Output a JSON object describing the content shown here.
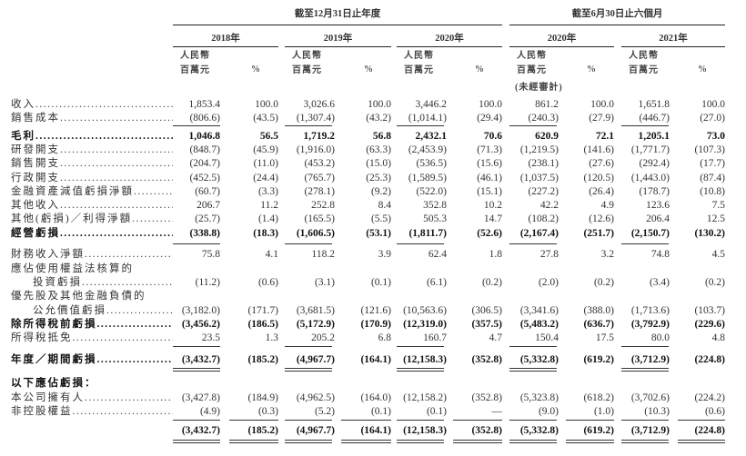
{
  "header": {
    "period_year": "截至12月31日止年度",
    "period_half": "截至6月30日止六個月",
    "columns": [
      "2018年",
      "2019年",
      "2020年",
      "2020年",
      "2021年"
    ],
    "unit_line1": "人民幣",
    "unit_line2": "百萬元",
    "pct": "%",
    "unaudited": "(未經審計)"
  },
  "rows": [
    {
      "label": "收入",
      "values": [
        "1,853.4",
        "100.0",
        "3,026.6",
        "100.0",
        "3,446.2",
        "100.0",
        "861.2",
        "100.0",
        "1,651.8",
        "100.0"
      ]
    },
    {
      "label": "銷售成本",
      "values": [
        "(806.6)",
        "(43.5)",
        "(1,307.4)",
        "(43.2)",
        "(1,014.1)",
        "(29.4)",
        "(240.3)",
        "(27.9)",
        "(446.7)",
        "(27.0)"
      ]
    },
    {
      "label": "毛利",
      "bold": true,
      "values": [
        "1,046.8",
        "56.5",
        "1,719.2",
        "56.8",
        "2,432.1",
        "70.6",
        "620.9",
        "72.1",
        "1,205.1",
        "73.0"
      ]
    },
    {
      "label": "研發開支",
      "values": [
        "(848.7)",
        "(45.9)",
        "(1,916.0)",
        "(63.3)",
        "(2,453.9)",
        "(71.3)",
        "(1,219.5)",
        "(141.6)",
        "(1,771.7)",
        "(107.3)"
      ]
    },
    {
      "label": "銷售開支",
      "values": [
        "(204.7)",
        "(11.0)",
        "(453.2)",
        "(15.0)",
        "(536.5)",
        "(15.6)",
        "(238.1)",
        "(27.6)",
        "(292.4)",
        "(17.7)"
      ]
    },
    {
      "label": "行政開支",
      "values": [
        "(452.5)",
        "(24.4)",
        "(765.7)",
        "(25.3)",
        "(1,589.5)",
        "(46.1)",
        "(1,037.5)",
        "(120.5)",
        "(1,443.0)",
        "(87.4)"
      ]
    },
    {
      "label": "金融資產減值虧損淨額",
      "values": [
        "(60.7)",
        "(3.3)",
        "(278.1)",
        "(9.2)",
        "(522.0)",
        "(15.1)",
        "(227.2)",
        "(26.4)",
        "(178.7)",
        "(10.8)"
      ]
    },
    {
      "label": "其他收入",
      "values": [
        "206.7",
        "11.2",
        "252.8",
        "8.4",
        "352.8",
        "10.2",
        "42.2",
        "4.9",
        "123.6",
        "7.5"
      ]
    },
    {
      "label": "其他(虧損)／利得淨額",
      "values": [
        "(25.7)",
        "(1.4)",
        "(165.5)",
        "(5.5)",
        "505.3",
        "14.7",
        "(108.2)",
        "(12.6)",
        "206.4",
        "12.5"
      ]
    },
    {
      "label": "經營虧損",
      "bold": true,
      "values": [
        "(338.8)",
        "(18.3)",
        "(1,606.5)",
        "(53.1)",
        "(1,811.7)",
        "(52.6)",
        "(2,167.4)",
        "(251.7)",
        "(2,150.7)",
        "(130.2)"
      ]
    },
    {
      "label": "財務收入淨額",
      "values": [
        "75.8",
        "4.1",
        "118.2",
        "3.9",
        "62.4",
        "1.8",
        "27.8",
        "3.2",
        "74.8",
        "4.5"
      ]
    },
    {
      "label": "應佔使用權益法核算的",
      "nodots": true,
      "values": []
    },
    {
      "label": "投資虧損",
      "indent": true,
      "values": [
        "(11.2)",
        "(0.6)",
        "(3.1)",
        "(0.1)",
        "(6.1)",
        "(0.2)",
        "(2.0)",
        "(0.2)",
        "(3.4)",
        "(0.2)"
      ]
    },
    {
      "label": "優先股及其他金融負債的",
      "nodots": true,
      "values": []
    },
    {
      "label": "公允價值虧損",
      "indent": true,
      "values": [
        "(3,182.0)",
        "(171.7)",
        "(3,681.5)",
        "(121.6)",
        "(10,563.6)",
        "(306.5)",
        "(3,341.6)",
        "(388.0)",
        "(1,713.6)",
        "(103.7)"
      ]
    },
    {
      "label": "除所得稅前虧損",
      "bold": true,
      "values": [
        "(3,456.2)",
        "(186.5)",
        "(5,172.9)",
        "(170.9)",
        "(12,319.0)",
        "(357.5)",
        "(5,483.2)",
        "(636.7)",
        "(3,792.9)",
        "(229.6)"
      ]
    },
    {
      "label": "所得稅抵免",
      "values": [
        "23.5",
        "1.3",
        "205.2",
        "6.8",
        "160.7",
        "4.7",
        "150.4",
        "17.5",
        "80.0",
        "4.8"
      ]
    },
    {
      "label": "年度／期間虧損",
      "bold": true,
      "values": [
        "(3,432.7)",
        "(185.2)",
        "(4,967.7)",
        "(164.1)",
        "(12,158.3)",
        "(352.8)",
        "(5,332.8)",
        "(619.2)",
        "(3,712.9)",
        "(224.8)"
      ]
    },
    {
      "label": "以下應佔虧損：",
      "bold": true,
      "nodots": true,
      "values": []
    },
    {
      "label": "本公司擁有人",
      "values": [
        "(3,427.8)",
        "(184.9)",
        "(4,962.5)",
        "(164.0)",
        "(12,158.2)",
        "(352.8)",
        "(5,323.8)",
        "(618.2)",
        "(3,702.6)",
        "(224.2)"
      ]
    },
    {
      "label": "非控股權益",
      "values": [
        "(4.9)",
        "(0.3)",
        "(5.2)",
        "(0.1)",
        "(0.1)",
        "—",
        "(9.0)",
        "(1.0)",
        "(10.3)",
        "(0.6)"
      ]
    },
    {
      "label": "",
      "bold": true,
      "nodots": true,
      "values": [
        "(3,432.7)",
        "(185.2)",
        "(4,967.7)",
        "(164.1)",
        "(12,158.3)",
        "(352.8)",
        "(5,332.8)",
        "(619.2)",
        "(3,712.9)",
        "(224.8)"
      ]
    }
  ]
}
